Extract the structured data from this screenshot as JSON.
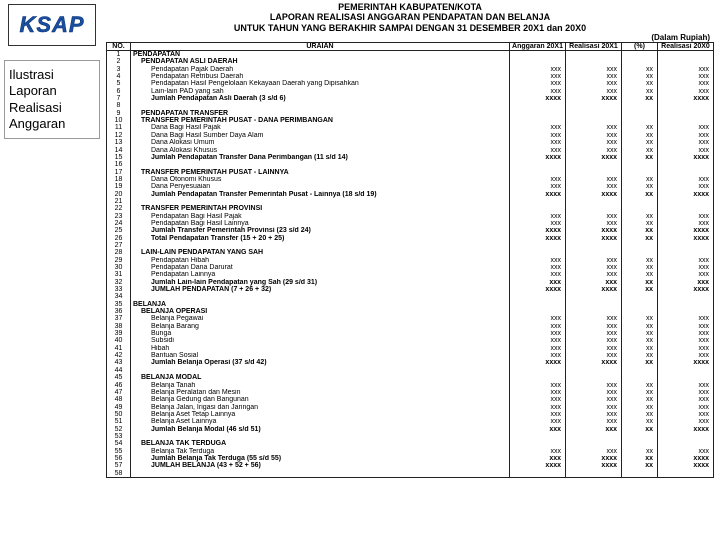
{
  "logo": "KSAP",
  "sidebar": "Ilustrasi Laporan Realisasi Anggaran",
  "header": {
    "l1": "PEMERINTAH KABUPATEN/KOTA",
    "l2": "LAPORAN REALISASI ANGGARAN PENDAPATAN DAN BELANJA",
    "l3": "UNTUK TAHUN YANG BERAKHIR SAMPAI DENGAN 31 DESEMBER 20X1 dan 20X0",
    "unit": "(Dalam Rupiah)"
  },
  "columns": {
    "no": "NO.",
    "uraian": "URAIAN",
    "c1": "Anggaran 20X1",
    "c2": "Realisasi 20X1",
    "c3": "(%)",
    "c4": "Realisasi 20X0"
  },
  "rows": [
    {
      "n": "1",
      "u": "PENDAPATAN",
      "cls": "b"
    },
    {
      "n": "2",
      "u": "PENDAPATAN ASLI DAERAH",
      "cls": "b i1"
    },
    {
      "n": "3",
      "u": "Pendapatan Pajak Daerah",
      "cls": "i2",
      "v1": "xxx",
      "v2": "xxx",
      "v3": "xx",
      "v4": "xxx"
    },
    {
      "n": "4",
      "u": "Pendapatan Retribusi Daerah",
      "cls": "i2",
      "v1": "xxx",
      "v2": "xxx",
      "v3": "xx",
      "v4": "xxx"
    },
    {
      "n": "5",
      "u": "Pendapatan Hasil Pengelolaan Kekayaan Daerah yang Dipisahkan",
      "cls": "i2",
      "v1": "xxx",
      "v2": "xxx",
      "v3": "xx",
      "v4": "xxx"
    },
    {
      "n": "6",
      "u": "Lain-lain PAD yang sah",
      "cls": "i2",
      "v1": "xxx",
      "v2": "xxx",
      "v3": "xx",
      "v4": "xxx"
    },
    {
      "n": "7",
      "u": "Jumlah Pendapatan Asli Daerah (3 s/d 6)",
      "cls": "b i2",
      "v1": "xxxx",
      "v2": "xxxx",
      "v3": "xx",
      "v4": "xxxx",
      "bold": true
    },
    {
      "n": "8",
      "u": ""
    },
    {
      "n": "9",
      "u": "PENDAPATAN TRANSFER",
      "cls": "b i1"
    },
    {
      "n": "10",
      "u": "TRANSFER PEMERINTAH PUSAT - DANA PERIMBANGAN",
      "cls": "b i1"
    },
    {
      "n": "11",
      "u": "Dana Bagi Hasil Pajak",
      "cls": "i2",
      "v1": "xxx",
      "v2": "xxx",
      "v3": "xx",
      "v4": "xxx"
    },
    {
      "n": "12",
      "u": "Dana Bagi Hasil Sumber Daya Alam",
      "cls": "i2",
      "v1": "xxx",
      "v2": "xxx",
      "v3": "xx",
      "v4": "xxx"
    },
    {
      "n": "13",
      "u": "Dana Alokasi Umum",
      "cls": "i2",
      "v1": "xxx",
      "v2": "xxx",
      "v3": "xx",
      "v4": "xxx"
    },
    {
      "n": "14",
      "u": "Dana Alokasi Khusus",
      "cls": "i2",
      "v1": "xxx",
      "v2": "xxx",
      "v3": "xx",
      "v4": "xxx"
    },
    {
      "n": "15",
      "u": "Jumlah Pendapatan Transfer Dana Perimbangan (11 s/d 14)",
      "cls": "b i2",
      "v1": "xxxx",
      "v2": "xxxx",
      "v3": "xx",
      "v4": "xxxx",
      "bold": true
    },
    {
      "n": "16",
      "u": ""
    },
    {
      "n": "17",
      "u": "TRANSFER PEMERINTAH PUSAT - LAINNYA",
      "cls": "b i1"
    },
    {
      "n": "18",
      "u": "Dana Otonomi Khusus",
      "cls": "i2",
      "v1": "xxx",
      "v2": "xxx",
      "v3": "xx",
      "v4": "xxx"
    },
    {
      "n": "19",
      "u": "Dana Penyesuaian",
      "cls": "i2",
      "v1": "xxx",
      "v2": "xxx",
      "v3": "xx",
      "v4": "xxx"
    },
    {
      "n": "20",
      "u": "Jumlah Pendapatan Transfer Pemerintah Pusat - Lainnya (18 s/d 19)",
      "cls": "b i2",
      "v1": "xxxx",
      "v2": "xxxx",
      "v3": "xx",
      "v4": "xxxx",
      "bold": true
    },
    {
      "n": "21",
      "u": ""
    },
    {
      "n": "22",
      "u": "TRANSFER PEMERINTAH PROVINSI",
      "cls": "b i1"
    },
    {
      "n": "23",
      "u": "Pendapatan Bagi Hasil Pajak",
      "cls": "i2",
      "v1": "xxx",
      "v2": "xxx",
      "v3": "xx",
      "v4": "xxx"
    },
    {
      "n": "24",
      "u": "Pendapatan Bagi Hasil Lainnya",
      "cls": "i2",
      "v1": "xxx",
      "v2": "xxx",
      "v3": "xx",
      "v4": "xxx"
    },
    {
      "n": "25",
      "u": "Jumlah Transfer Pemerintah Provinsi (23 s/d 24)",
      "cls": "b i2",
      "v1": "xxxx",
      "v2": "xxxx",
      "v3": "xx",
      "v4": "xxxx",
      "bold": true
    },
    {
      "n": "26",
      "u": "Total Pendapatan Transfer (15 + 20 + 25)",
      "cls": "b i2",
      "v1": "xxxx",
      "v2": "xxxx",
      "v3": "xx",
      "v4": "xxxx",
      "bold": true
    },
    {
      "n": "27",
      "u": ""
    },
    {
      "n": "28",
      "u": "LAIN-LAIN PENDAPATAN YANG SAH",
      "cls": "b i1"
    },
    {
      "n": "29",
      "u": "Pendapatan Hibah",
      "cls": "i2",
      "v1": "xxx",
      "v2": "xxx",
      "v3": "xx",
      "v4": "xxx"
    },
    {
      "n": "30",
      "u": "Pendapatan Dana Darurat",
      "cls": "i2",
      "v1": "xxx",
      "v2": "xxx",
      "v3": "xx",
      "v4": "xxx"
    },
    {
      "n": "31",
      "u": "Pendapatan Lainnya",
      "cls": "i2",
      "v1": "xxx",
      "v2": "xxx",
      "v3": "xx",
      "v4": "xxx"
    },
    {
      "n": "32",
      "u": "Jumlah Lain-lain Pendapatan yang Sah (29 s/d 31)",
      "cls": "b i2",
      "v1": "xxx",
      "v2": "xxx",
      "v3": "xx",
      "v4": "xxx",
      "bold": true
    },
    {
      "n": "33",
      "u": "JUMLAH PENDAPATAN (7 + 26 + 32)",
      "cls": "b i2",
      "v1": "xxxx",
      "v2": "xxxx",
      "v3": "xx",
      "v4": "xxxx",
      "bold": true
    },
    {
      "n": "34",
      "u": ""
    },
    {
      "n": "35",
      "u": "BELANJA",
      "cls": "b"
    },
    {
      "n": "36",
      "u": "BELANJA OPERASI",
      "cls": "b i1"
    },
    {
      "n": "37",
      "u": "Belanja Pegawai",
      "cls": "i2",
      "v1": "xxx",
      "v2": "xxx",
      "v3": "xx",
      "v4": "xxx"
    },
    {
      "n": "38",
      "u": "Belanja Barang",
      "cls": "i2",
      "v1": "xxx",
      "v2": "xxx",
      "v3": "xx",
      "v4": "xxx"
    },
    {
      "n": "39",
      "u": "Bunga",
      "cls": "i2",
      "v1": "xxx",
      "v2": "xxx",
      "v3": "xx",
      "v4": "xxx"
    },
    {
      "n": "40",
      "u": "Subsidi",
      "cls": "i2",
      "v1": "xxx",
      "v2": "xxx",
      "v3": "xx",
      "v4": "xxx"
    },
    {
      "n": "41",
      "u": "Hibah",
      "cls": "i2",
      "v1": "xxx",
      "v2": "xxx",
      "v3": "xx",
      "v4": "xxx"
    },
    {
      "n": "42",
      "u": "Bantuan Sosial",
      "cls": "i2",
      "v1": "xxx",
      "v2": "xxx",
      "v3": "xx",
      "v4": "xxx"
    },
    {
      "n": "43",
      "u": "Jumlah Belanja Operasi (37 s/d 42)",
      "cls": "b i2",
      "v1": "xxxx",
      "v2": "xxxx",
      "v3": "xx",
      "v4": "xxxx",
      "bold": true
    },
    {
      "n": "44",
      "u": ""
    },
    {
      "n": "45",
      "u": "BELANJA MODAL",
      "cls": "b i1"
    },
    {
      "n": "46",
      "u": "Belanja Tanah",
      "cls": "i2",
      "v1": "xxx",
      "v2": "xxx",
      "v3": "xx",
      "v4": "xxx"
    },
    {
      "n": "47",
      "u": "Belanja Peralatan dan Mesin",
      "cls": "i2",
      "v1": "xxx",
      "v2": "xxx",
      "v3": "xx",
      "v4": "xxx"
    },
    {
      "n": "48",
      "u": "Belanja Gedung dan Bangunan",
      "cls": "i2",
      "v1": "xxx",
      "v2": "xxx",
      "v3": "xx",
      "v4": "xxx"
    },
    {
      "n": "49",
      "u": "Belanja Jalan, Irigasi dan Jaringan",
      "cls": "i2",
      "v1": "xxx",
      "v2": "xxx",
      "v3": "xx",
      "v4": "xxx"
    },
    {
      "n": "50",
      "u": "Belanja Aset Tetap Lainnya",
      "cls": "i2",
      "v1": "xxx",
      "v2": "xxx",
      "v3": "xx",
      "v4": "xxx"
    },
    {
      "n": "51",
      "u": "Belanja Aset Lainnya",
      "cls": "i2",
      "v1": "xxx",
      "v2": "xxx",
      "v3": "xx",
      "v4": "xxx"
    },
    {
      "n": "52",
      "u": "Jumlah Belanja Modal (46 s/d 51)",
      "cls": "b i2",
      "v1": "xxx",
      "v2": "xxx",
      "v3": "xx",
      "v4": "xxxx",
      "bold": true
    },
    {
      "n": "53",
      "u": ""
    },
    {
      "n": "54",
      "u": "BELANJA TAK TERDUGA",
      "cls": "b i1"
    },
    {
      "n": "55",
      "u": "Belanja Tak Terduga",
      "cls": "i2",
      "v1": "xxx",
      "v2": "xxx",
      "v3": "xx",
      "v4": "xxx"
    },
    {
      "n": "56",
      "u": "Jumlah Belanja Tak Terduga (55 s/d 55)",
      "cls": "b i2",
      "v1": "xxx",
      "v2": "xxxx",
      "v3": "xx",
      "v4": "xxxx",
      "bold": true
    },
    {
      "n": "57",
      "u": "JUMLAH BELANJA (43 + 52 + 56)",
      "cls": "b i2",
      "v1": "xxxx",
      "v2": "xxxx",
      "v3": "xx",
      "v4": "xxxx",
      "bold": true
    },
    {
      "n": "58",
      "u": ""
    }
  ]
}
